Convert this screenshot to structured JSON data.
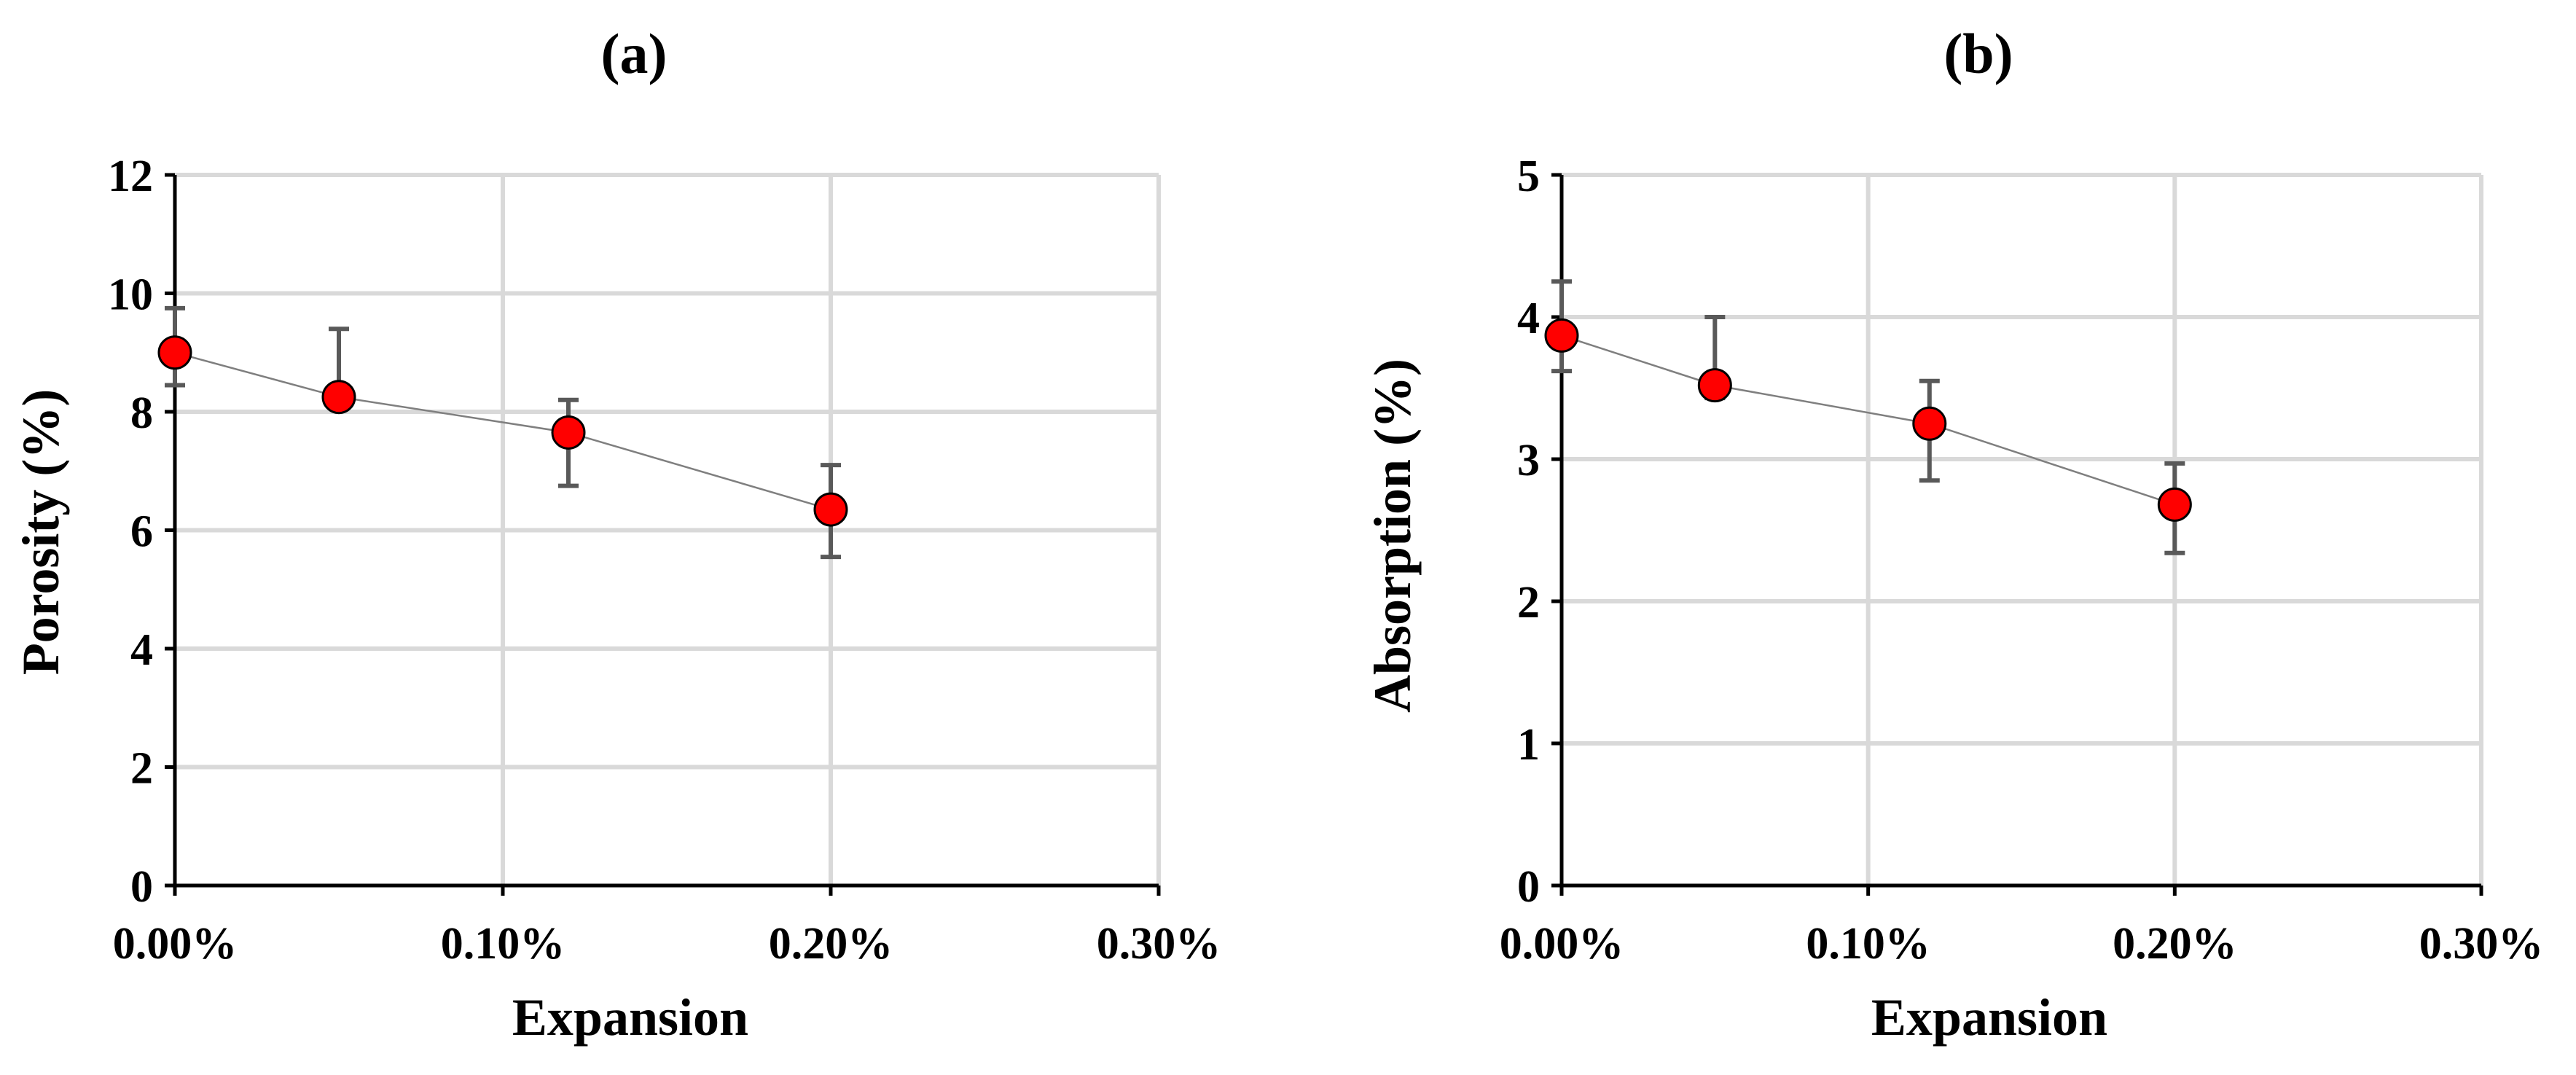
{
  "colors": {
    "marker_fill": "#ff0000",
    "marker_stroke": "#000000",
    "line": "#7f7f7f",
    "error_bar": "#595959",
    "grid": "#d9d9d9"
  },
  "chart_data": [
    {
      "type": "scatter",
      "panel_label": "(a)",
      "xlabel": "Expansion",
      "ylabel": "Porosity (%)",
      "xlim": [
        0,
        0.003
      ],
      "ylim": [
        0,
        12
      ],
      "x_ticks": [
        0,
        0.001,
        0.002,
        0.003
      ],
      "x_tick_labels": [
        "0.00%",
        "0.10%",
        "0.20%",
        "0.30%"
      ],
      "y_ticks": [
        0,
        2,
        4,
        6,
        8,
        10,
        12
      ],
      "y_tick_labels": [
        "0",
        "2",
        "4",
        "6",
        "8",
        "10",
        "12"
      ],
      "grid": true,
      "legend": "none",
      "series": [
        {
          "x": [
            0,
            0.0005,
            0.0012,
            0.002
          ],
          "y": [
            9.0,
            8.25,
            7.65,
            6.35
          ],
          "err_upper": [
            9.75,
            9.4,
            8.2,
            7.1
          ],
          "err_lower": [
            8.45,
            8.2,
            6.75,
            5.55
          ],
          "connected": true
        }
      ]
    },
    {
      "type": "scatter",
      "panel_label": "(b)",
      "xlabel": "Expansion",
      "ylabel": "Absorption (%)",
      "xlim": [
        0,
        0.003
      ],
      "ylim": [
        0,
        5
      ],
      "x_ticks": [
        0,
        0.001,
        0.002,
        0.003
      ],
      "x_tick_labels": [
        "0.00%",
        "0.10%",
        "0.20%",
        "0.30%"
      ],
      "y_ticks": [
        0,
        1,
        2,
        3,
        4,
        5
      ],
      "y_tick_labels": [
        "0",
        "1",
        "2",
        "3",
        "4",
        "5"
      ],
      "grid": true,
      "legend": "none",
      "series": [
        {
          "x": [
            0,
            0.0005,
            0.0012,
            0.002
          ],
          "y": [
            3.87,
            3.52,
            3.25,
            2.68
          ],
          "err_upper": [
            4.25,
            4.0,
            3.55,
            2.97
          ],
          "err_lower": [
            3.62,
            3.43,
            2.85,
            2.34
          ],
          "connected": true
        }
      ]
    }
  ]
}
